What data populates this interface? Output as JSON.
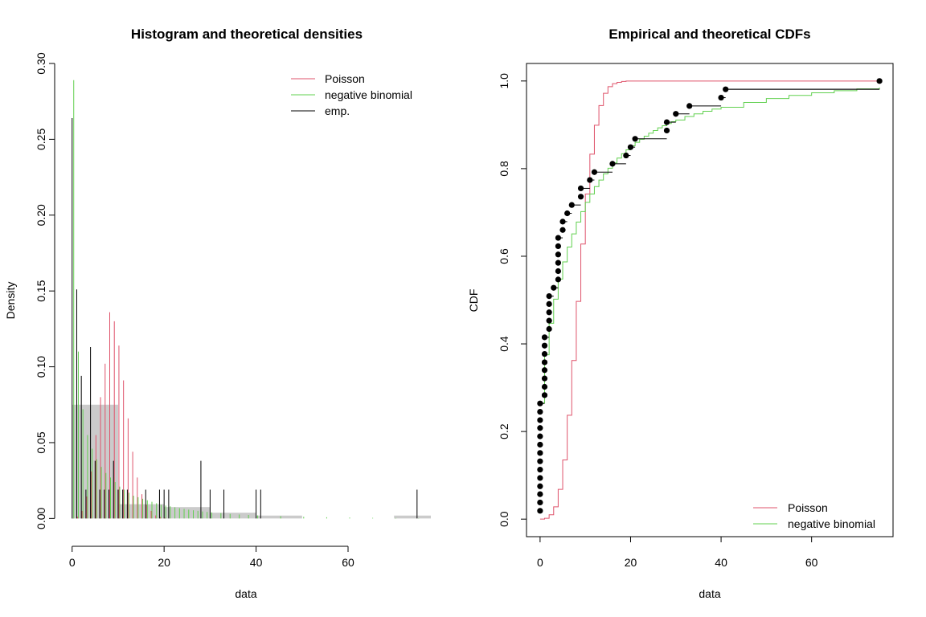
{
  "colors": {
    "poisson": "#DF536B",
    "negbin": "#61D04F",
    "emp": "#000000",
    "hist": "#BEBEBE"
  },
  "chart_data": [
    {
      "type": "bar",
      "title": "Histogram and theoretical densities",
      "xlabel": "data",
      "ylabel": "Density",
      "xlim": [
        -1.7,
        78
      ],
      "ylim": [
        -0.012,
        0.3
      ],
      "xticks": [
        "0",
        "20",
        "40",
        "60"
      ],
      "xtick_values": [
        0,
        20,
        40,
        60
      ],
      "yticks": [
        "0.00",
        "0.05",
        "0.10",
        "0.15",
        "0.20",
        "0.25",
        "0.30"
      ],
      "ytick_values": [
        0,
        0.05,
        0.1,
        0.15,
        0.2,
        0.25,
        0.3
      ],
      "legend_position": "top-right",
      "legend": [
        "Poisson",
        "negative binomial",
        "emp."
      ],
      "histogram": [
        {
          "from": 0,
          "to": 10,
          "density": 0.075
        },
        {
          "from": 10,
          "to": 20,
          "density": 0.0094
        },
        {
          "from": 20,
          "to": 30,
          "density": 0.0075
        },
        {
          "from": 30,
          "to": 40,
          "density": 0.0038
        },
        {
          "from": 40,
          "to": 50,
          "density": 0.0019
        },
        {
          "from": 50,
          "to": 60,
          "density": 0
        },
        {
          "from": 60,
          "to": 70,
          "density": 0
        },
        {
          "from": 70,
          "to": 80,
          "density": 0.0019
        }
      ],
      "series": [
        {
          "name": "Poisson",
          "x": [
            0,
            1,
            2,
            3,
            4,
            5,
            6,
            7,
            8,
            9,
            10,
            11,
            12,
            13,
            14,
            15,
            16,
            17,
            18,
            19,
            20
          ],
          "values": [
            0.0001,
            0.0012,
            0.005,
            0.0145,
            0.031,
            0.055,
            0.08,
            0.102,
            0.136,
            0.13,
            0.114,
            0.091,
            0.066,
            0.044,
            0.027,
            0.016,
            0.009,
            0.005,
            0.002,
            0.001,
            0.0005
          ]
        },
        {
          "name": "negative binomial",
          "x": [
            0,
            1,
            2,
            3,
            4,
            5,
            6,
            7,
            8,
            9,
            10,
            11,
            12,
            13,
            14,
            15,
            16,
            17,
            18,
            19,
            20,
            21,
            22,
            23,
            24,
            25,
            26,
            27,
            28,
            29,
            30,
            32,
            34,
            36,
            38,
            40,
            45,
            50,
            55,
            60,
            65,
            70,
            75
          ],
          "values": [
            0.289,
            0.11,
            0.072,
            0.055,
            0.046,
            0.039,
            0.034,
            0.03,
            0.027,
            0.024,
            0.021,
            0.019,
            0.017,
            0.015,
            0.014,
            0.013,
            0.012,
            0.011,
            0.01,
            0.009,
            0.0085,
            0.008,
            0.0074,
            0.0068,
            0.0063,
            0.0058,
            0.0054,
            0.005,
            0.0046,
            0.0043,
            0.004,
            0.0035,
            0.003,
            0.0026,
            0.0023,
            0.002,
            0.0015,
            0.0011,
            0.0008,
            0.0006,
            0.0004,
            0.0003,
            0.0002
          ]
        },
        {
          "name": "emp.",
          "x": [
            0,
            1,
            2,
            3,
            4,
            5,
            6,
            7,
            8,
            9,
            10,
            11,
            12,
            13,
            14,
            15,
            16,
            17,
            18,
            19,
            20,
            21,
            28,
            30,
            33,
            40,
            41,
            75
          ],
          "values": [
            0.264,
            0.151,
            0.094,
            0.019,
            0.113,
            0.038,
            0.019,
            0.019,
            0.019,
            0.038,
            0.019,
            0.019,
            0.019,
            0,
            0,
            0,
            0.019,
            0,
            0,
            0.019,
            0.019,
            0.019,
            0.038,
            0.019,
            0.019,
            0.019,
            0.019,
            0.019
          ]
        }
      ]
    },
    {
      "type": "line",
      "title": "Empirical and theoretical CDFs",
      "xlabel": "data",
      "ylabel": "CDF",
      "xlim": [
        -3,
        78
      ],
      "ylim": [
        -0.04,
        1.04
      ],
      "xticks": [
        "0",
        "20",
        "40",
        "60"
      ],
      "xtick_values": [
        0,
        20,
        40,
        60
      ],
      "yticks": [
        "0.0",
        "0.2",
        "0.4",
        "0.6",
        "0.8",
        "1.0"
      ],
      "ytick_values": [
        0,
        0.2,
        0.4,
        0.6,
        0.8,
        1.0
      ],
      "legend_position": "bottom-right",
      "legend": [
        "Poisson",
        "negative binomial"
      ],
      "series": [
        {
          "name": "Poisson",
          "x": [
            0,
            1,
            2,
            3,
            4,
            5,
            6,
            7,
            8,
            9,
            10,
            11,
            12,
            13,
            14,
            15,
            16,
            17,
            18,
            19,
            20,
            75
          ],
          "values": [
            0.0001,
            0.002,
            0.01,
            0.028,
            0.068,
            0.135,
            0.237,
            0.362,
            0.497,
            0.628,
            0.742,
            0.833,
            0.899,
            0.944,
            0.972,
            0.987,
            0.994,
            0.997,
            0.999,
            1.0,
            1.0,
            1.0
          ]
        },
        {
          "name": "negative binomial",
          "x": [
            0,
            1,
            2,
            3,
            4,
            5,
            6,
            7,
            8,
            9,
            10,
            11,
            12,
            13,
            14,
            15,
            16,
            17,
            18,
            19,
            20,
            21,
            22,
            23,
            24,
            25,
            26,
            27,
            28,
            29,
            30,
            32,
            34,
            36,
            38,
            40,
            45,
            50,
            55,
            60,
            65,
            70,
            75
          ],
          "values": [
            0.265,
            0.375,
            0.447,
            0.502,
            0.548,
            0.587,
            0.621,
            0.651,
            0.678,
            0.702,
            0.723,
            0.742,
            0.759,
            0.774,
            0.788,
            0.801,
            0.813,
            0.824,
            0.834,
            0.843,
            0.852,
            0.86,
            0.867,
            0.874,
            0.881,
            0.887,
            0.893,
            0.898,
            0.903,
            0.907,
            0.911,
            0.919,
            0.925,
            0.931,
            0.936,
            0.94,
            0.951,
            0.96,
            0.967,
            0.973,
            0.978,
            0.982,
            0.985
          ]
        },
        {
          "name": "emp.",
          "x": [
            0,
            0,
            0,
            0,
            0,
            0,
            0,
            0,
            0,
            0,
            0,
            0,
            0,
            0,
            1,
            1,
            1,
            1,
            1,
            1,
            1,
            1,
            2,
            2,
            2,
            2,
            2,
            3,
            4,
            4,
            4,
            4,
            4,
            4,
            5,
            5,
            6,
            7,
            9,
            9,
            11,
            12,
            16,
            19,
            20,
            21,
            28,
            28,
            30,
            33,
            40,
            41,
            75
          ],
          "values": [
            0.019,
            0.038,
            0.057,
            0.075,
            0.094,
            0.113,
            0.132,
            0.151,
            0.17,
            0.189,
            0.208,
            0.226,
            0.245,
            0.264,
            0.283,
            0.302,
            0.321,
            0.34,
            0.358,
            0.377,
            0.396,
            0.415,
            0.434,
            0.453,
            0.472,
            0.491,
            0.509,
            0.528,
            0.547,
            0.566,
            0.585,
            0.604,
            0.623,
            0.642,
            0.66,
            0.679,
            0.698,
            0.717,
            0.736,
            0.755,
            0.774,
            0.792,
            0.811,
            0.83,
            0.849,
            0.868,
            0.887,
            0.906,
            0.925,
            0.943,
            0.962,
            0.981,
            1.0
          ]
        }
      ]
    }
  ]
}
